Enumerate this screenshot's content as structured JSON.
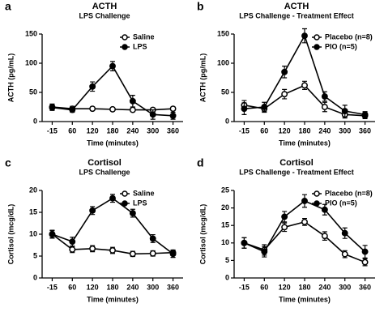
{
  "chart_data": [
    {
      "type": "line",
      "panel_label": "a",
      "title": "ACTH",
      "subtitle": "LPS Challenge",
      "y_label": "ACTH (pg/mL)",
      "x_label": "Time (minutes)",
      "categories": [
        "-15",
        "60",
        "120",
        "180",
        "240",
        "300",
        "360"
      ],
      "ylim": [
        0,
        150
      ],
      "yticks": [
        0,
        50,
        100,
        150
      ],
      "legend": "top-right",
      "series": [
        {
          "name": "Saline",
          "color": "#000000",
          "marker": "open",
          "values": [
            25,
            22,
            22,
            21,
            20,
            20,
            22
          ],
          "errors": [
            5,
            4,
            3,
            3,
            3,
            3,
            3
          ]
        },
        {
          "name": "LPS",
          "color": "#000000",
          "marker": "filled",
          "values": [
            24,
            20,
            60,
            95,
            35,
            12,
            10
          ],
          "errors": [
            5,
            4,
            8,
            8,
            10,
            8,
            6
          ]
        }
      ]
    },
    {
      "type": "line",
      "panel_label": "b",
      "title": "ACTH",
      "subtitle": "LPS Challenge - Treatment Effect",
      "y_label": "ACTH (pg/mL)",
      "x_label": "Time (minutes)",
      "categories": [
        "-15",
        "60",
        "120",
        "180",
        "240",
        "300",
        "360"
      ],
      "ylim": [
        0,
        150
      ],
      "yticks": [
        0,
        50,
        100,
        150
      ],
      "legend": "top-right",
      "series": [
        {
          "name": "Placebo (n=8)",
          "color": "#000000",
          "marker": "open",
          "values": [
            28,
            22,
            47,
            62,
            25,
            12,
            10
          ],
          "errors": [
            8,
            6,
            8,
            7,
            8,
            6,
            5
          ]
        },
        {
          "name": "PIO (n=5)",
          "color": "#000000",
          "marker": "filled",
          "values": [
            22,
            25,
            85,
            147,
            43,
            18,
            12
          ],
          "errors": [
            10,
            8,
            10,
            12,
            8,
            10,
            5
          ]
        }
      ]
    },
    {
      "type": "line",
      "panel_label": "c",
      "title": "Cortisol",
      "subtitle": "LPS Challenge",
      "y_label": "Cortisol (mcg/dL)",
      "x_label": "Time (minutes)",
      "categories": [
        "-15",
        "60",
        "120",
        "180",
        "240",
        "300",
        "360"
      ],
      "ylim": [
        0,
        20
      ],
      "yticks": [
        0,
        5,
        10,
        15,
        20
      ],
      "legend": "top-right",
      "series": [
        {
          "name": "Saline",
          "color": "#000000",
          "marker": "open",
          "values": [
            10,
            6.5,
            6.7,
            6.3,
            5.5,
            5.6,
            5.8
          ],
          "errors": [
            0.8,
            0.7,
            0.7,
            0.7,
            0.6,
            0.6,
            0.6
          ]
        },
        {
          "name": "LPS",
          "color": "#000000",
          "marker": "filled",
          "values": [
            10,
            8.3,
            15.4,
            18.2,
            14.8,
            9,
            5.5
          ],
          "errors": [
            0.9,
            1,
            0.9,
            0.9,
            0.9,
            0.9,
            0.8
          ]
        }
      ]
    },
    {
      "type": "line",
      "panel_label": "d",
      "title": "Cortisol",
      "subtitle": "LPS Challenge - Treatment Effect",
      "y_label": "Cortisol (mcg/dL)",
      "x_label": "Time (minutes)",
      "categories": [
        "-15",
        "60",
        "120",
        "180",
        "240",
        "300",
        "360"
      ],
      "ylim": [
        0,
        25
      ],
      "yticks": [
        0,
        5,
        10,
        15,
        20,
        25
      ],
      "legend": "top-right",
      "series": [
        {
          "name": "Placebo (n=8)",
          "color": "#000000",
          "marker": "open",
          "values": [
            10,
            8,
            14.5,
            16,
            12,
            6.8,
            4.5
          ],
          "errors": [
            1.5,
            1.5,
            1.2,
            1,
            1.2,
            1,
            1
          ]
        },
        {
          "name": "PIO (n=5)",
          "color": "#000000",
          "marker": "filled",
          "values": [
            10,
            7.5,
            17.5,
            22,
            19.5,
            12.8,
            7.5
          ],
          "errors": [
            1.5,
            1.5,
            1.5,
            1.8,
            1.5,
            1.5,
            1.8
          ]
        }
      ]
    }
  ]
}
